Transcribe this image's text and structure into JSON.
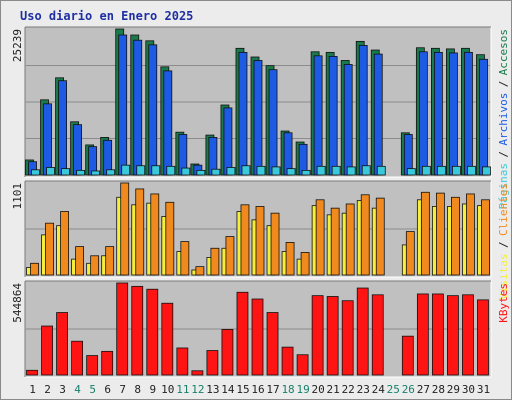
{
  "title": "Uso diario en Enero 2025",
  "colors": {
    "accesos": "#1a7a4c",
    "archivos": "#1d5be5",
    "paginas": "#3ac9da",
    "visitas": "#f5ee3a",
    "clientes": "#f08a1e",
    "kbytes": "#ff1414",
    "panel_bg": "#c0c0c0",
    "day_normal": "#222222",
    "day_weekend": "#17806a"
  },
  "days": [
    "1",
    "2",
    "3",
    "4",
    "5",
    "6",
    "7",
    "8",
    "9",
    "10",
    "11",
    "12",
    "13",
    "14",
    "15",
    "16",
    "17",
    "18",
    "19",
    "20",
    "21",
    "22",
    "23",
    "24",
    "25",
    "26",
    "27",
    "28",
    "29",
    "30",
    "31"
  ],
  "weekend_days": [
    4,
    5,
    11,
    12,
    18,
    19,
    25,
    26
  ],
  "panels": {
    "top": {
      "max_label": "25239",
      "legend": [
        {
          "text": "Accesos",
          "key": "accesos"
        },
        {
          "text": "Archivos",
          "key": "archivos"
        },
        {
          "text": "Páginas",
          "key": "paginas"
        }
      ]
    },
    "middle": {
      "max_label": "1101",
      "legend": [
        {
          "text": "Clientes",
          "key": "clientes"
        },
        {
          "text": "Visitas",
          "key": "visitas"
        }
      ]
    },
    "bottom": {
      "max_label": "544864",
      "legend": [
        {
          "text": "KBytes",
          "key": "kbytes"
        }
      ]
    }
  },
  "chart_data": [
    {
      "type": "bar",
      "categories": [
        "1",
        "2",
        "3",
        "4",
        "5",
        "6",
        "7",
        "8",
        "9",
        "10",
        "11",
        "12",
        "13",
        "14",
        "15",
        "16",
        "17",
        "18",
        "19",
        "20",
        "21",
        "22",
        "23",
        "24",
        "25",
        "26",
        "27",
        "28",
        "29",
        "30",
        "31"
      ],
      "ymax": 25239,
      "max_label": "25239",
      "series": [
        {
          "name": "Accesos",
          "values": [
            2600,
            13000,
            16800,
            9200,
            5200,
            6500,
            25239,
            24200,
            23200,
            18700,
            7400,
            1900,
            6900,
            12100,
            21900,
            20400,
            18900,
            7600,
            5700,
            21300,
            21200,
            19800,
            23100,
            21600,
            0,
            7300,
            22000,
            21900,
            21800,
            21900,
            20800
          ]
        },
        {
          "name": "Archivos",
          "values": [
            2300,
            12300,
            16300,
            8700,
            4900,
            6000,
            24200,
            23300,
            22500,
            18000,
            7000,
            1700,
            6500,
            11600,
            21200,
            19800,
            18200,
            7300,
            5300,
            20600,
            20500,
            19100,
            22400,
            20900,
            0,
            7000,
            21300,
            21200,
            21100,
            21200,
            20000
          ]
        },
        {
          "name": "Páginas",
          "values": [
            900,
            1300,
            1100,
            800,
            700,
            900,
            1700,
            1600,
            1600,
            1500,
            1200,
            800,
            1000,
            1300,
            1600,
            1500,
            1400,
            1100,
            800,
            1500,
            1500,
            1400,
            1600,
            1500,
            0,
            1100,
            1500,
            1500,
            1500,
            1500,
            1400
          ]
        }
      ]
    },
    {
      "type": "bar",
      "categories": [
        "1",
        "2",
        "3",
        "4",
        "5",
        "6",
        "7",
        "8",
        "9",
        "10",
        "11",
        "12",
        "13",
        "14",
        "15",
        "16",
        "17",
        "18",
        "19",
        "20",
        "21",
        "22",
        "23",
        "24",
        "25",
        "26",
        "27",
        "28",
        "29",
        "30",
        "31"
      ],
      "ymax": 1101,
      "max_label": "1101",
      "series": [
        {
          "name": "Visitas",
          "values": [
            90,
            480,
            590,
            190,
            140,
            230,
            930,
            840,
            860,
            700,
            280,
            60,
            210,
            320,
            760,
            660,
            590,
            280,
            190,
            830,
            720,
            740,
            890,
            800,
            0,
            360,
            900,
            820,
            820,
            850,
            830
          ]
        },
        {
          "name": "Clientes",
          "values": [
            140,
            620,
            760,
            340,
            230,
            340,
            1101,
            1030,
            970,
            870,
            400,
            100,
            320,
            460,
            840,
            820,
            740,
            390,
            270,
            900,
            800,
            850,
            960,
            920,
            0,
            520,
            990,
            980,
            930,
            970,
            900
          ]
        }
      ]
    },
    {
      "type": "bar",
      "categories": [
        "1",
        "2",
        "3",
        "4",
        "5",
        "6",
        "7",
        "8",
        "9",
        "10",
        "11",
        "12",
        "13",
        "14",
        "15",
        "16",
        "17",
        "18",
        "19",
        "20",
        "21",
        "22",
        "23",
        "24",
        "25",
        "26",
        "27",
        "28",
        "29",
        "30",
        "31"
      ],
      "ymax": 544864,
      "max_label": "544864",
      "series": [
        {
          "name": "KBytes",
          "values": [
            28000,
            290000,
            370000,
            200000,
            115000,
            140000,
            544864,
            525000,
            508000,
            425000,
            160000,
            25000,
            145000,
            270000,
            490000,
            450000,
            370000,
            165000,
            120000,
            470000,
            465000,
            440000,
            515000,
            475000,
            0,
            230000,
            480000,
            480000,
            470000,
            475000,
            445000
          ]
        }
      ]
    }
  ]
}
